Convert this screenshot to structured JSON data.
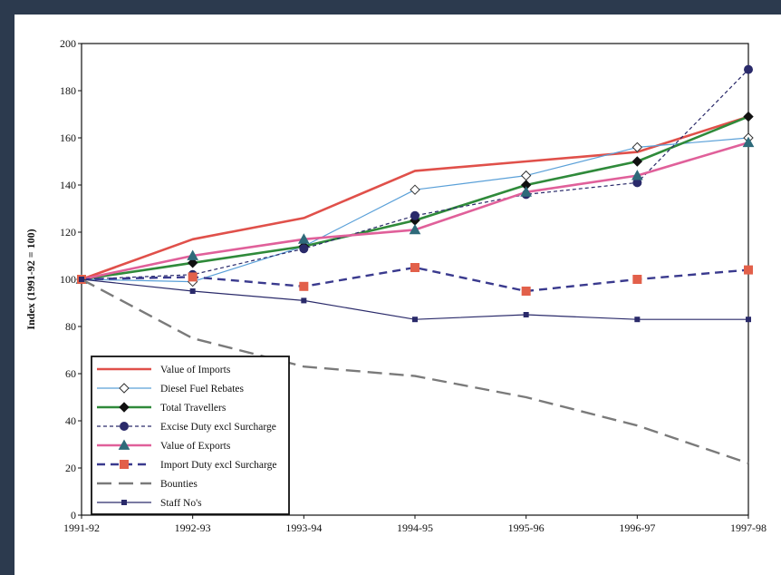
{
  "chart_data": {
    "type": "line",
    "title": "",
    "xlabel": "",
    "ylabel": "Index (1991-92 = 100)",
    "categories": [
      "1991-92",
      "1992-93",
      "1993-94",
      "1994-95",
      "1995-96",
      "1996-97",
      "1997-98"
    ],
    "ylim": [
      0,
      200
    ],
    "yticks": [
      0,
      20,
      40,
      60,
      80,
      100,
      120,
      140,
      160,
      180,
      200
    ],
    "grid": false,
    "legend_position": "bottom-left",
    "series": [
      {
        "name": "Value of Imports",
        "values": [
          100,
          117,
          126,
          146,
          150,
          154,
          169
        ],
        "color": "#e0504a",
        "dash": "",
        "width": 2.6,
        "marker": "none"
      },
      {
        "name": "Diesel Fuel Rebates",
        "values": [
          100,
          99,
          114,
          138,
          144,
          156,
          160
        ],
        "color": "#5aa0d8",
        "dash": "",
        "width": 1.2,
        "marker": "diamond-open"
      },
      {
        "name": "Total Travellers",
        "values": [
          100,
          107,
          114,
          125,
          140,
          150,
          169
        ],
        "color": "#2f8a3a",
        "dash": "",
        "width": 2.6,
        "marker": "diamond"
      },
      {
        "name": "Excise Duty excl Surcharge",
        "values": [
          100,
          102,
          113,
          127,
          136,
          141,
          189
        ],
        "color": "#2a2a6a",
        "dash": "4,3",
        "width": 1.2,
        "marker": "circle"
      },
      {
        "name": "Value of Exports",
        "values": [
          100,
          110,
          117,
          121,
          137,
          144,
          158
        ],
        "color": "#e0609a",
        "dash": "",
        "width": 2.6,
        "marker": "triangle"
      },
      {
        "name": "Import Duty excl Surcharge",
        "values": [
          100,
          101,
          97,
          105,
          95,
          100,
          104
        ],
        "color": "#3a3a8e",
        "dash": "9,6",
        "width": 2.4,
        "marker": "square"
      },
      {
        "name": "Bounties",
        "values": [
          100,
          75,
          63,
          59,
          50,
          38,
          22
        ],
        "color": "#7a7a7a",
        "dash": "16,8",
        "width": 2.4,
        "marker": "none"
      },
      {
        "name": "Staff No's",
        "values": [
          100,
          95,
          91,
          83,
          85,
          83,
          83
        ],
        "color": "#2a2a6a",
        "dash": "",
        "width": 1.2,
        "marker": "small-square"
      }
    ]
  }
}
